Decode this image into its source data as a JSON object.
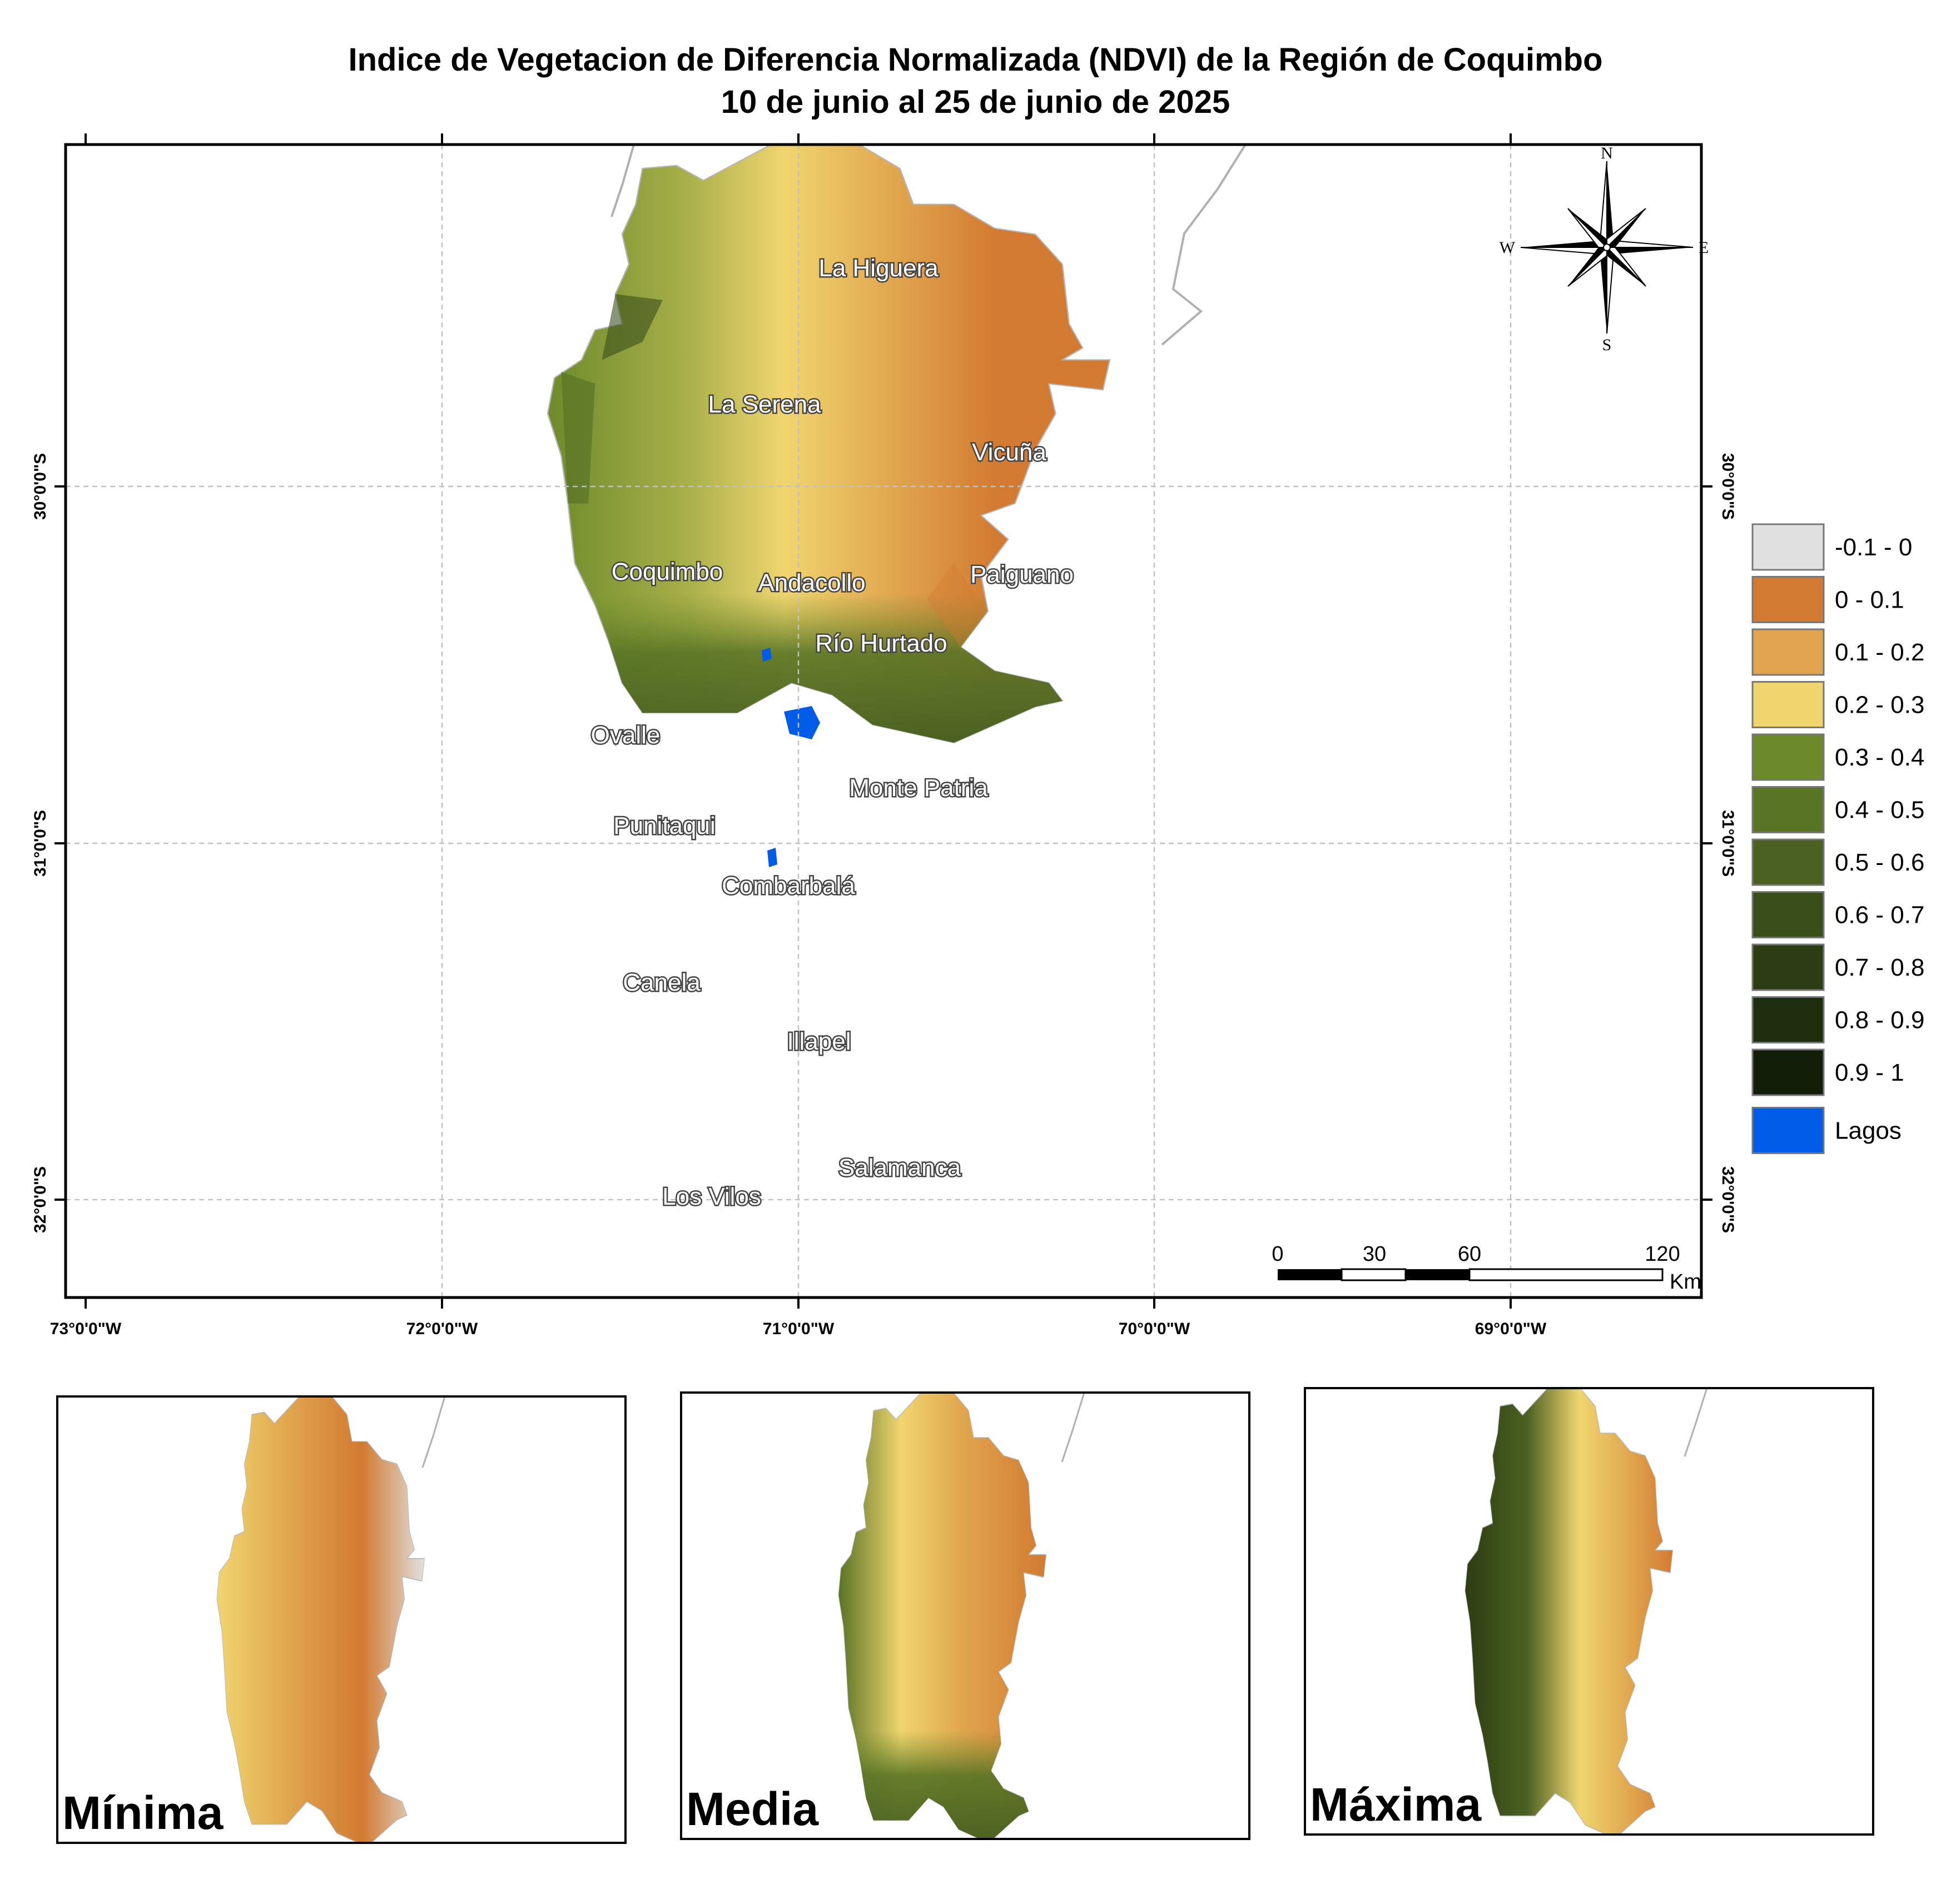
{
  "title": {
    "line1": "Indice de Vegetacion de Diferencia Normalizada (NDVI) de la Región de Coquimbo",
    "line2": "10 de junio al 25 de junio de 2025"
  },
  "axes": {
    "lon_labels": [
      "73°0'0\"W",
      "72°0'0\"W",
      "71°0'0\"W",
      "70°0'0\"W",
      "69°0'0\"W"
    ],
    "lat_labels": [
      "30°0'0\"S",
      "31°0'0\"S",
      "32°0'0\"S"
    ]
  },
  "compass": {
    "n": "N",
    "s": "S",
    "e": "E",
    "w": "W"
  },
  "places": [
    "La Higuera",
    "La Serena",
    "Vicuña",
    "Coquimbo",
    "Andacollo",
    "Paiguano",
    "Río Hurtado",
    "Ovalle",
    "Monte Patria",
    "Punitaqui",
    "Combarbalá",
    "Canela",
    "Illapel",
    "Salamanca",
    "Los Vilos"
  ],
  "legend": [
    {
      "label": "-0.1 - 0",
      "color": "#e0e0e0"
    },
    {
      "label": "0 - 0.1",
      "color": "#d27a31"
    },
    {
      "label": "0.1 - 0.2",
      "color": "#e0a54e"
    },
    {
      "label": "0.2 - 0.3",
      "color": "#f0d56f"
    },
    {
      "label": "0.3 - 0.4",
      "color": "#6d8a2a"
    },
    {
      "label": "0.4 - 0.5",
      "color": "#587425"
    },
    {
      "label": "0.5 - 0.6",
      "color": "#4b6122"
    },
    {
      "label": "0.6 - 0.7",
      "color": "#3a4e1a"
    },
    {
      "label": "0.7 - 0.8",
      "color": "#2c3d13"
    },
    {
      "label": "0.8 - 0.9",
      "color": "#1f2e0d"
    },
    {
      "label": "0.9 - 1",
      "color": "#121e08"
    },
    {
      "label": "Lagos",
      "color": "#005ce6"
    }
  ],
  "scale_bar": {
    "ticks": [
      "0",
      "30",
      "60",
      "120"
    ],
    "unit": "Km"
  },
  "insets": [
    "Mínima",
    "Media",
    "Máxima"
  ]
}
